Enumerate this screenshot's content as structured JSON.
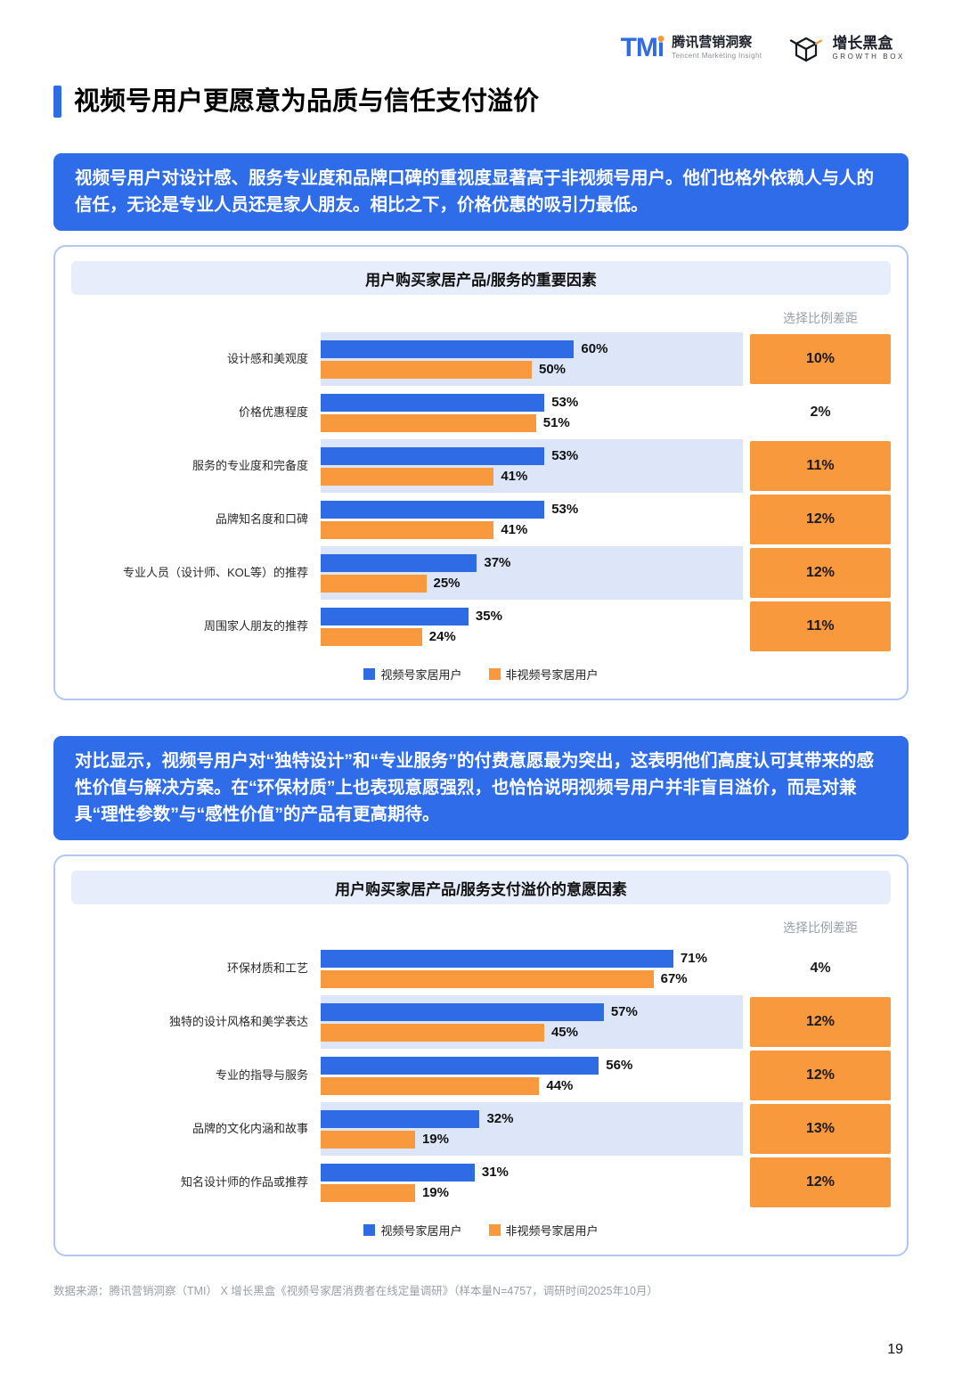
{
  "header": {
    "tmi": {
      "logo": "TM",
      "logo_i": "i",
      "name": "腾讯营销洞察",
      "subtitle": "Tencent Marketing Insight"
    },
    "growthbox": {
      "name": "增长黑盒",
      "subtitle": "GROWTH BOX"
    }
  },
  "page": {
    "title": "视频号用户更愿意为品质与信任支付溢价",
    "footer": "数据来源：腾讯营销洞察（TMI） X 增长黑盒《视频号家居消费者在线定量调研》（样本量N=4757，调研时间2025年10月）",
    "number": "19"
  },
  "insights": {
    "box1": "视频号用户对设计感、服务专业度和品牌口碑的重视度显著高于非视频号用户。他们也格外依赖人与人的信任，无论是专业人员还是家人朋友。相比之下，价格优惠的吸引力最低。",
    "box2": "对比显示，视频号用户对“独特设计”和“专业服务”的付费意愿最为突出，这表明他们高度认可其带来的感性价值与解决方案。在“环保材质”上也表现意愿强烈，也恰恰说明视频号用户并非盲目溢价，而是对兼具“理性参数”与“感性价值”的产品有更高期待。"
  },
  "colors": {
    "blue": "#2F6BE4",
    "orange": "#F8993D",
    "stripe": "#DCE6F8",
    "chart_title_bg": "#E7EDFB",
    "card_border": "#B3C7F0",
    "insight_bg": "#2F6CEA"
  },
  "chart_data": [
    {
      "type": "bar",
      "orientation": "horizontal",
      "title": "用户购买家居产品/服务的重要因素",
      "diff_header": "选择比例差距",
      "categories": [
        "设计感和美观度",
        "价格优惠程度",
        "服务的专业度和完备度",
        "品牌知名度和口碑",
        "专业人员（设计师、KOL等）的推荐",
        "周围家人朋友的推荐"
      ],
      "series": [
        {
          "name": "视频号家居用户",
          "color": "#2F6BE4",
          "values": [
            60,
            53,
            53,
            53,
            37,
            35
          ]
        },
        {
          "name": "非视频号家居用户",
          "color": "#F8993D",
          "values": [
            50,
            51,
            41,
            41,
            25,
            24
          ]
        }
      ],
      "diffs": [
        "10%",
        "2%",
        "11%",
        "12%",
        "12%",
        "11%"
      ],
      "diff_highlight": [
        true,
        false,
        true,
        true,
        true,
        true
      ],
      "xlim": [
        0,
        100
      ],
      "stripe_indices": [
        0,
        2,
        4
      ],
      "legend_position": "bottom",
      "grid": false
    },
    {
      "type": "bar",
      "orientation": "horizontal",
      "title": "用户购买家居产品/服务支付溢价的意愿因素",
      "diff_header": "选择比例差距",
      "categories": [
        "环保材质和工艺",
        "独特的设计风格和美学表达",
        "专业的指导与服务",
        "品牌的文化内涵和故事",
        "知名设计师的作品或推荐"
      ],
      "series": [
        {
          "name": "视频号家居用户",
          "color": "#2F6BE4",
          "values": [
            71,
            57,
            56,
            32,
            31
          ]
        },
        {
          "name": "非视频号家居用户",
          "color": "#F8993D",
          "values": [
            67,
            45,
            44,
            19,
            19
          ]
        }
      ],
      "diffs": [
        "4%",
        "12%",
        "12%",
        "13%",
        "12%"
      ],
      "diff_highlight": [
        false,
        true,
        true,
        true,
        true
      ],
      "xlim": [
        0,
        85
      ],
      "stripe_indices": [
        1,
        3
      ],
      "legend_position": "bottom",
      "grid": false
    }
  ]
}
